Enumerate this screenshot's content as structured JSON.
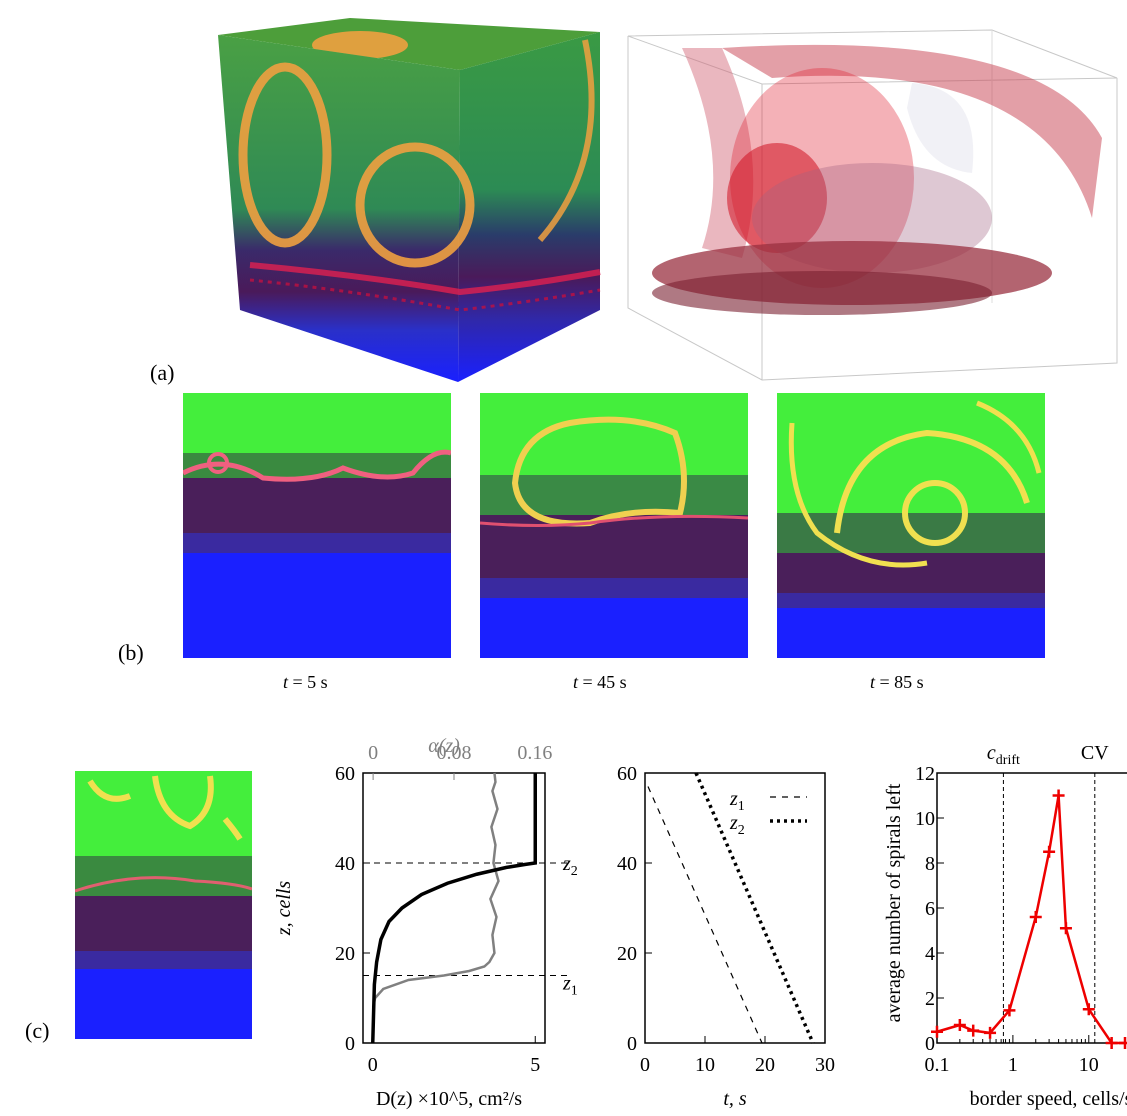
{
  "panels": {
    "a": {
      "label": "(a)"
    },
    "b": {
      "label": "(b)",
      "captions": [
        {
          "var": "t",
          "rest": " = 5 s"
        },
        {
          "var": "t",
          "rest": " = 45 s"
        },
        {
          "var": "t",
          "rest": " = 85 s"
        }
      ]
    },
    "c": {
      "label": "(c)"
    }
  },
  "chart_data": [
    {
      "type": "line",
      "xlabel": "D(z) ×10^5, cm²/s",
      "ylabel": "z, cells",
      "top_axis_label": "α(z)",
      "xticks": [
        "0",
        "5"
      ],
      "yticks": [
        "0",
        "20",
        "40",
        "60"
      ],
      "top_ticks": [
        "0",
        "0.08",
        "0.16"
      ],
      "xlim": [
        -0.3,
        5.3
      ],
      "ylim": [
        0,
        60
      ],
      "top_lim": [
        -0.01,
        0.17
      ],
      "annotations": [
        "z2",
        "z1"
      ],
      "hlines": [
        40,
        15
      ],
      "series": [
        {
          "color": "#000000",
          "x": [
            0.0,
            0.05,
            0.12,
            0.25,
            0.5,
            0.9,
            1.5,
            2.3,
            3.2,
            4.1,
            4.7,
            5.0,
            5.0
          ],
          "y": [
            0,
            13,
            18,
            23,
            27,
            30,
            33,
            35.5,
            37.5,
            39,
            39.7,
            40,
            60
          ]
        },
        {
          "color": "#808080",
          "alpha": [
            0.0,
            0.002,
            0.01,
            0.035,
            0.07,
            0.095,
            0.11,
            0.115,
            0.12,
            0.118,
            0.122,
            0.116,
            0.124,
            0.119,
            0.121,
            0.117,
            0.123,
            0.118,
            0.121,
            0.12
          ],
          "y": [
            8,
            10,
            12,
            14,
            15,
            16,
            17,
            18,
            20,
            24,
            28,
            32,
            36,
            40,
            44,
            48,
            52,
            56,
            58,
            60
          ]
        }
      ]
    },
    {
      "type": "line",
      "xlabel": "t, s",
      "ylabel": "",
      "xticks": [
        "0",
        "10",
        "20",
        "30"
      ],
      "yticks": [
        "0",
        "20",
        "40",
        "60"
      ],
      "xlim": [
        0,
        30
      ],
      "ylim": [
        0,
        60
      ],
      "series": [
        {
          "name": "z1",
          "style": "dashed",
          "x": [
            0.5,
            19.5
          ],
          "y": [
            57,
            0
          ]
        },
        {
          "name": "z2",
          "style": "dotted",
          "x": [
            8.5,
            28
          ],
          "y": [
            60,
            0
          ]
        }
      ]
    },
    {
      "type": "line",
      "xlabel": "border speed, cells/s",
      "ylabel": "average number of spirals left",
      "xscale": "log",
      "xticks": [
        "0.1",
        "1",
        "10"
      ],
      "yticks": [
        "0",
        "2",
        "4",
        "6",
        "8",
        "10",
        "12"
      ],
      "xlim": [
        0.1,
        30
      ],
      "ylim": [
        0,
        12
      ],
      "vlines": [
        {
          "label": "c_drift",
          "x": 0.75
        },
        {
          "label": "CV",
          "x": 12
        }
      ],
      "series": [
        {
          "color": "#ee0000",
          "x": [
            0.1,
            0.2,
            0.3,
            0.5,
            0.9,
            2.0,
            3.0,
            4.0,
            5.0,
            10.0,
            20.0,
            30.0
          ],
          "y": [
            0.5,
            0.8,
            0.55,
            0.45,
            1.45,
            5.6,
            8.5,
            11.0,
            5.1,
            1.5,
            0.0,
            0.0
          ]
        }
      ]
    }
  ]
}
